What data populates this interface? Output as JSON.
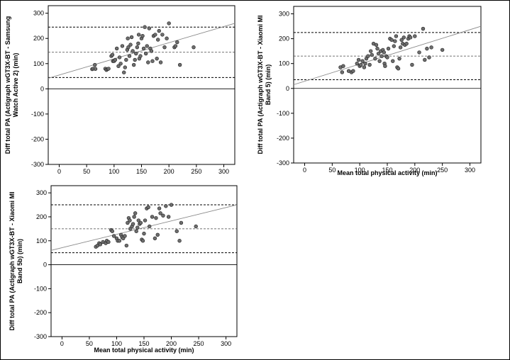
{
  "chart_data": [
    {
      "type": "scatter",
      "xlabel": "",
      "ylabel_lines": [
        "Diff total PA (Actigraph wGT3X-BT - Samsung",
        "Watch Active 2) (min)"
      ],
      "xlim": [
        -20,
        320
      ],
      "ylim": [
        -300,
        330
      ],
      "xticks": [
        0,
        50,
        100,
        150,
        200,
        250,
        300
      ],
      "yticks": [
        -300,
        -200,
        -100,
        0,
        100,
        200,
        300
      ],
      "hlines": {
        "mean": 145,
        "upper_loa": 245,
        "lower_loa": 45,
        "zero": 0
      },
      "regression": {
        "x0": -20,
        "y0": 42,
        "x1": 320,
        "y1": 260
      },
      "points": [
        [
          60,
          78
        ],
        [
          62,
          80
        ],
        [
          65,
          95
        ],
        [
          66,
          79
        ],
        [
          84,
          80
        ],
        [
          86,
          75
        ],
        [
          88,
          78
        ],
        [
          90,
          80
        ],
        [
          95,
          130
        ],
        [
          97,
          135
        ],
        [
          98,
          110
        ],
        [
          100,
          110
        ],
        [
          102,
          115
        ],
        [
          105,
          160
        ],
        [
          108,
          90
        ],
        [
          110,
          125
        ],
        [
          112,
          100
        ],
        [
          115,
          170
        ],
        [
          118,
          65
        ],
        [
          120,
          85
        ],
        [
          122,
          115
        ],
        [
          124,
          155
        ],
        [
          125,
          200
        ],
        [
          126,
          165
        ],
        [
          128,
          130
        ],
        [
          130,
          175
        ],
        [
          132,
          205
        ],
        [
          134,
          150
        ],
        [
          136,
          95
        ],
        [
          138,
          115
        ],
        [
          140,
          140
        ],
        [
          142,
          165
        ],
        [
          144,
          180
        ],
        [
          145,
          215
        ],
        [
          146,
          120
        ],
        [
          148,
          130
        ],
        [
          150,
          200
        ],
        [
          152,
          210
        ],
        [
          154,
          160
        ],
        [
          156,
          245
        ],
        [
          158,
          140
        ],
        [
          160,
          170
        ],
        [
          162,
          105
        ],
        [
          164,
          240
        ],
        [
          166,
          160
        ],
        [
          168,
          150
        ],
        [
          170,
          110
        ],
        [
          172,
          210
        ],
        [
          175,
          215
        ],
        [
          178,
          120
        ],
        [
          180,
          195
        ],
        [
          182,
          230
        ],
        [
          185,
          105
        ],
        [
          188,
          215
        ],
        [
          192,
          165
        ],
        [
          196,
          200
        ],
        [
          200,
          260
        ],
        [
          210,
          165
        ],
        [
          212,
          170
        ],
        [
          215,
          185
        ],
        [
          220,
          95
        ],
        [
          245,
          165
        ]
      ]
    },
    {
      "type": "scatter",
      "xlabel": "Mean total physical activity (min)",
      "ylabel_lines": [
        "Diff total PA (Actigraph wGT3X-BT - Xiaomi MI",
        "Band 5) (min)"
      ],
      "xlim": [
        -20,
        320
      ],
      "ylim": [
        -300,
        330
      ],
      "xticks": [
        0,
        50,
        100,
        150,
        200,
        250,
        300
      ],
      "yticks": [
        -300,
        -200,
        -100,
        0,
        100,
        200,
        300
      ],
      "hlines": {
        "mean": 130,
        "upper_loa": 225,
        "lower_loa": 35,
        "zero": 0
      },
      "regression": {
        "x0": -20,
        "y0": 15,
        "x1": 320,
        "y1": 250
      },
      "points": [
        [
          65,
          85
        ],
        [
          68,
          65
        ],
        [
          70,
          90
        ],
        [
          80,
          70
        ],
        [
          85,
          65
        ],
        [
          88,
          70
        ],
        [
          95,
          100
        ],
        [
          98,
          115
        ],
        [
          100,
          90
        ],
        [
          102,
          95
        ],
        [
          105,
          110
        ],
        [
          108,
          85
        ],
        [
          110,
          100
        ],
        [
          112,
          120
        ],
        [
          115,
          130
        ],
        [
          118,
          95
        ],
        [
          120,
          150
        ],
        [
          122,
          135
        ],
        [
          125,
          180
        ],
        [
          128,
          120
        ],
        [
          130,
          175
        ],
        [
          132,
          160
        ],
        [
          134,
          140
        ],
        [
          136,
          110
        ],
        [
          138,
          150
        ],
        [
          140,
          130
        ],
        [
          142,
          155
        ],
        [
          144,
          145
        ],
        [
          145,
          100
        ],
        [
          146,
          90
        ],
        [
          148,
          130
        ],
        [
          150,
          125
        ],
        [
          152,
          160
        ],
        [
          155,
          200
        ],
        [
          158,
          195
        ],
        [
          160,
          110
        ],
        [
          162,
          170
        ],
        [
          164,
          190
        ],
        [
          166,
          210
        ],
        [
          168,
          85
        ],
        [
          170,
          80
        ],
        [
          172,
          120
        ],
        [
          174,
          165
        ],
        [
          176,
          195
        ],
        [
          178,
          180
        ],
        [
          180,
          205
        ],
        [
          182,
          175
        ],
        [
          185,
          180
        ],
        [
          188,
          200
        ],
        [
          190,
          210
        ],
        [
          192,
          205
        ],
        [
          195,
          95
        ],
        [
          200,
          210
        ],
        [
          208,
          145
        ],
        [
          215,
          240
        ],
        [
          218,
          115
        ],
        [
          222,
          160
        ],
        [
          226,
          125
        ],
        [
          230,
          165
        ],
        [
          250,
          155
        ]
      ]
    },
    {
      "type": "scatter",
      "xlabel": "Mean total physical activity (min)",
      "ylabel_lines": [
        "Diff total PA (Actigraph wGT3X-BT - Xiaomi MI",
        "Band 5b) (min)"
      ],
      "xlim": [
        -20,
        320
      ],
      "ylim": [
        -300,
        330
      ],
      "xticks": [
        0,
        50,
        100,
        150,
        200,
        250,
        300
      ],
      "yticks": [
        -300,
        -200,
        -100,
        0,
        100,
        200,
        300
      ],
      "hlines": {
        "mean": 150,
        "upper_loa": 250,
        "lower_loa": 50,
        "zero": 0
      },
      "regression": {
        "x0": -20,
        "y0": 60,
        "x1": 320,
        "y1": 250
      },
      "points": [
        [
          62,
          75
        ],
        [
          65,
          80
        ],
        [
          68,
          90
        ],
        [
          70,
          85
        ],
        [
          75,
          95
        ],
        [
          80,
          90
        ],
        [
          82,
          100
        ],
        [
          85,
          95
        ],
        [
          90,
          145
        ],
        [
          92,
          140
        ],
        [
          95,
          120
        ],
        [
          100,
          110
        ],
        [
          102,
          100
        ],
        [
          105,
          100
        ],
        [
          108,
          125
        ],
        [
          110,
          115
        ],
        [
          112,
          110
        ],
        [
          115,
          120
        ],
        [
          118,
          80
        ],
        [
          120,
          175
        ],
        [
          122,
          195
        ],
        [
          124,
          185
        ],
        [
          125,
          150
        ],
        [
          128,
          160
        ],
        [
          130,
          170
        ],
        [
          132,
          200
        ],
        [
          134,
          215
        ],
        [
          136,
          140
        ],
        [
          138,
          155
        ],
        [
          140,
          185
        ],
        [
          142,
          170
        ],
        [
          144,
          175
        ],
        [
          146,
          105
        ],
        [
          148,
          100
        ],
        [
          150,
          130
        ],
        [
          152,
          185
        ],
        [
          155,
          235
        ],
        [
          158,
          240
        ],
        [
          160,
          160
        ],
        [
          165,
          200
        ],
        [
          170,
          110
        ],
        [
          172,
          195
        ],
        [
          175,
          125
        ],
        [
          178,
          235
        ],
        [
          180,
          215
        ],
        [
          185,
          205
        ],
        [
          190,
          245
        ],
        [
          195,
          200
        ],
        [
          200,
          250
        ],
        [
          210,
          140
        ],
        [
          215,
          100
        ],
        [
          218,
          175
        ],
        [
          245,
          160
        ]
      ]
    }
  ]
}
